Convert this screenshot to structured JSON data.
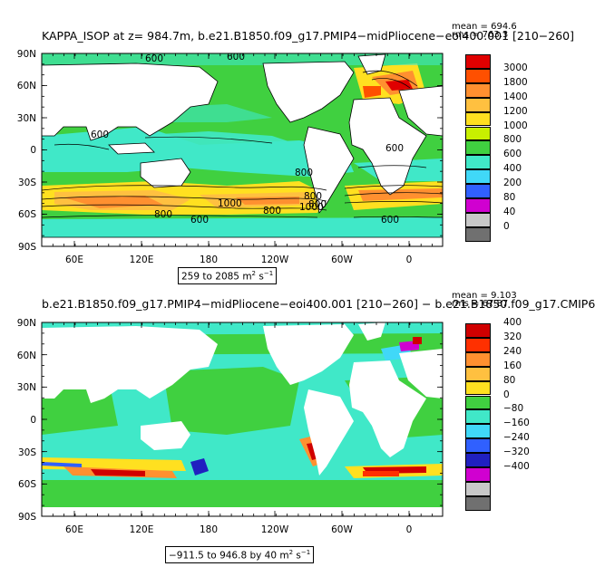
{
  "panel1": {
    "title": "KAPPA_ISOP at z= 984.7m, b.e21.B1850.f09_g17.PMIP4−midPliocene−eoi400.001 [210−260]",
    "mean_label": "mean = 694.6",
    "rms_label": "rms = 763.3",
    "range_label": "259 to 2085 m",
    "range_unit_sup": "2",
    "range_unit_tail": " s",
    "range_unit_sup2": "−1",
    "contour_labels": [
      "600",
      "600",
      "800",
      "1000",
      "800",
      "800",
      "600",
      "600",
      "800",
      "1000",
      "800",
      "600",
      "600"
    ],
    "legend": {
      "labels": [
        "3000",
        "1800",
        "1400",
        "1200",
        "1000",
        "800",
        "600",
        "400",
        "200",
        "80",
        "40",
        "0"
      ],
      "colors": [
        "#E00000",
        "#FF5000",
        "#FF9030",
        "#FFC040",
        "#FFE020",
        "#C8F000",
        "#40D040",
        "#40E8C8",
        "#40D8F8",
        "#3060FF",
        "#D000D0",
        "#C8C8C8",
        "#707070"
      ]
    }
  },
  "panel2": {
    "title": "b.e21.B1850.f09_g17.PMIP4−midPliocene−eoi400.001 [210−260] − b.e21.B1850.f09_g17.CMIP6",
    "mean_label": "mean = 9.103",
    "rms_label": "rms = 67.87",
    "range_label": "−911.5 to 946.8 by 40 m",
    "range_unit_sup": "2",
    "range_unit_tail": " s",
    "range_unit_sup2": "−1",
    "legend": {
      "labels": [
        "400",
        "320",
        "240",
        "160",
        "80",
        "0",
        "−80",
        "−160",
        "−240",
        "−320",
        "−400"
      ],
      "colors": [
        "#D00000",
        "#FF3000",
        "#FF9030",
        "#FFC040",
        "#FFE020",
        "#40D040",
        "#40E8C8",
        "#40D8F8",
        "#3060FF",
        "#2020C0",
        "#D000D0",
        "#C8C8C8",
        "#707070"
      ]
    }
  },
  "axes": {
    "lat_labels": [
      "90N",
      "60N",
      "30N",
      "0",
      "30S",
      "60S",
      "90S"
    ],
    "lon_labels": [
      "60E",
      "120E",
      "180",
      "120W",
      "60W",
      "0"
    ]
  }
}
